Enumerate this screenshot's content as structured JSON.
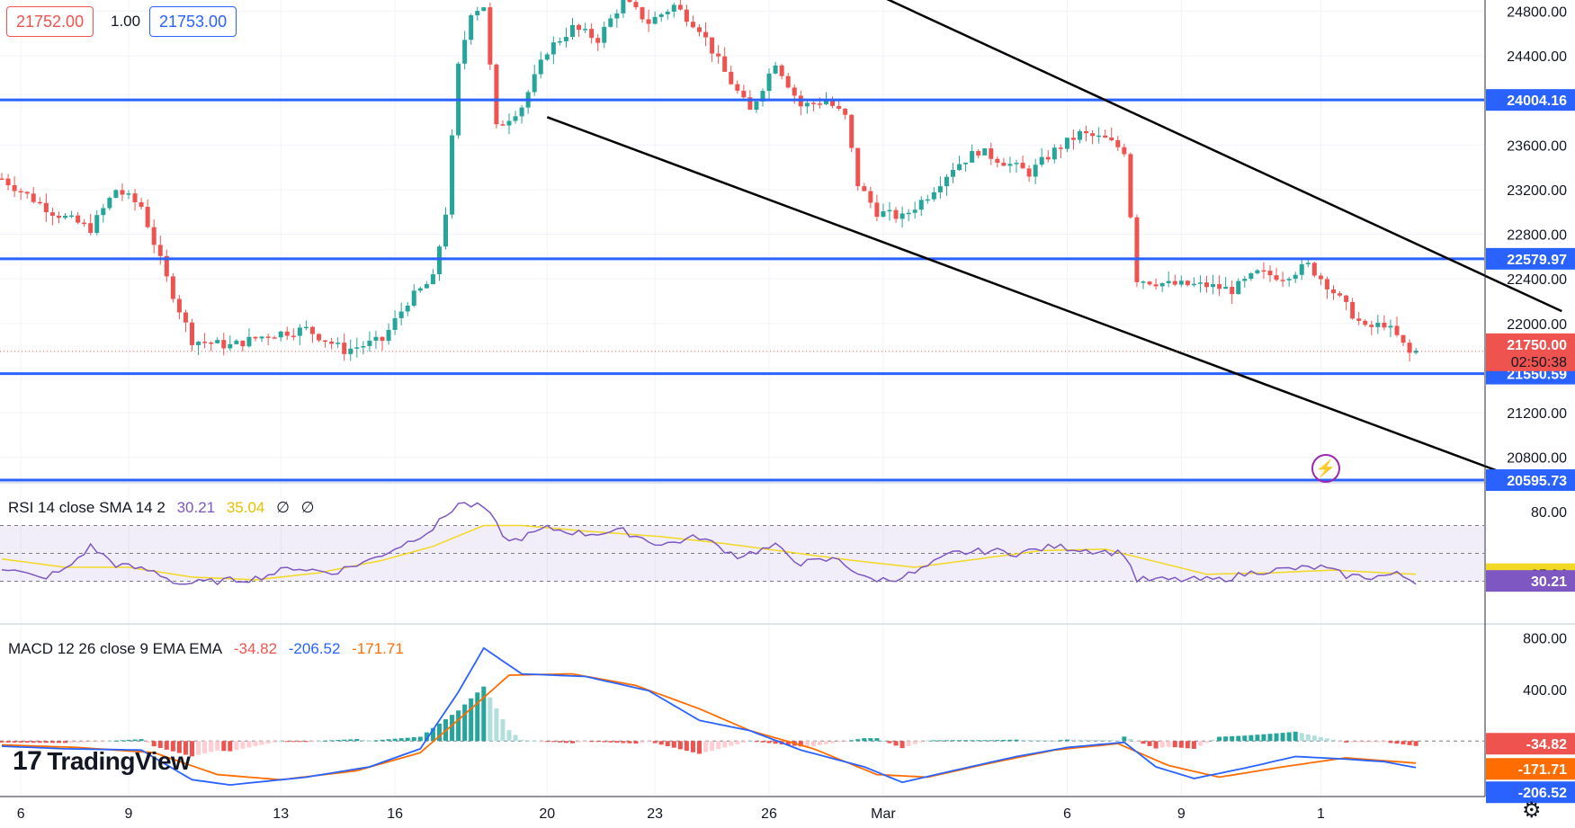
{
  "order_panel": {
    "sell_price": "21752.00",
    "quantity": "1.00",
    "buy_price": "21753.00"
  },
  "rsi_legend": {
    "label": "RSI 14 close SMA 14 2",
    "rsi_value": "30.21",
    "sma_value": "35.04",
    "extra1": "∅",
    "extra2": "∅"
  },
  "macd_legend": {
    "label": "MACD 12 26 close 9 EMA EMA",
    "hist_value": "-34.82",
    "macd_value": "-206.52",
    "signal_value": "-171.71"
  },
  "logo_text": "TradingView",
  "colors": {
    "up": "#26a69a",
    "down": "#ef5350",
    "level_line": "#2962ff",
    "trend_line": "#000000",
    "rsi": "#7e57c2",
    "rsi_sma": "#f2d824",
    "macd": "#2962ff",
    "signal": "#ff6d00",
    "last_price": "#ef5350"
  },
  "chart_data": {
    "type": "candlestick",
    "x_ticks": [
      "6",
      "9",
      "13",
      "16",
      "20",
      "23",
      "26",
      "Mar",
      "6",
      "9",
      "1"
    ],
    "price_axis": {
      "ylim": [
        20580,
        24900
      ],
      "ticks": [
        "24800.00",
        "24400.00",
        "23600.00",
        "23200.00",
        "22800.00",
        "22400.00",
        "22000.00",
        "21200.00",
        "20800.00"
      ],
      "levels": [
        {
          "value": 24004.16,
          "label": "24004.16"
        },
        {
          "value": 22579.97,
          "label": "22579.97"
        },
        {
          "value": 21550.59,
          "label": "21550.59"
        },
        {
          "value": 20595.73,
          "label": "20595.73"
        }
      ],
      "last_price": {
        "value": 21750.0,
        "label": "21750.00",
        "countdown": "02:50:38"
      }
    },
    "trend_lines": [
      {
        "from": {
          "bar": 138,
          "price": 24950
        },
        "to": {
          "bar": 246,
          "price": 22110
        }
      },
      {
        "from": {
          "bar": 86,
          "price": 23850
        },
        "to": {
          "bar": 241,
          "price": 20570
        }
      }
    ],
    "price_key": [
      {
        "bar": 0,
        "price": 23300
      },
      {
        "bar": 8,
        "price": 23000
      },
      {
        "bar": 14,
        "price": 22850
      },
      {
        "bar": 18,
        "price": 23200
      },
      {
        "bar": 22,
        "price": 23050
      },
      {
        "bar": 26,
        "price": 22400
      },
      {
        "bar": 30,
        "price": 21850
      },
      {
        "bar": 36,
        "price": 21800
      },
      {
        "bar": 42,
        "price": 21900
      },
      {
        "bar": 48,
        "price": 21950
      },
      {
        "bar": 54,
        "price": 21760
      },
      {
        "bar": 60,
        "price": 21850
      },
      {
        "bar": 64,
        "price": 22200
      },
      {
        "bar": 68,
        "price": 22400
      },
      {
        "bar": 70,
        "price": 23000
      },
      {
        "bar": 72,
        "price": 24300
      },
      {
        "bar": 74,
        "price": 24800
      },
      {
        "bar": 76,
        "price": 24850
      },
      {
        "bar": 78,
        "price": 23750
      },
      {
        "bar": 82,
        "price": 23950
      },
      {
        "bar": 86,
        "price": 24450
      },
      {
        "bar": 90,
        "price": 24650
      },
      {
        "bar": 94,
        "price": 24550
      },
      {
        "bar": 98,
        "price": 24900
      },
      {
        "bar": 102,
        "price": 24700
      },
      {
        "bar": 106,
        "price": 24850
      },
      {
        "bar": 110,
        "price": 24650
      },
      {
        "bar": 114,
        "price": 24250
      },
      {
        "bar": 118,
        "price": 23900
      },
      {
        "bar": 122,
        "price": 24350
      },
      {
        "bar": 126,
        "price": 23950
      },
      {
        "bar": 130,
        "price": 24000
      },
      {
        "bar": 133,
        "price": 23850
      },
      {
        "bar": 135,
        "price": 23250
      },
      {
        "bar": 138,
        "price": 23000
      },
      {
        "bar": 142,
        "price": 22950
      },
      {
        "bar": 146,
        "price": 23150
      },
      {
        "bar": 150,
        "price": 23400
      },
      {
        "bar": 154,
        "price": 23550
      },
      {
        "bar": 158,
        "price": 23450
      },
      {
        "bar": 162,
        "price": 23350
      },
      {
        "bar": 166,
        "price": 23550
      },
      {
        "bar": 170,
        "price": 23700
      },
      {
        "bar": 174,
        "price": 23650
      },
      {
        "bar": 177,
        "price": 23550
      },
      {
        "bar": 179,
        "price": 22400
      },
      {
        "bar": 184,
        "price": 22350
      },
      {
        "bar": 190,
        "price": 22340
      },
      {
        "bar": 194,
        "price": 22300
      },
      {
        "bar": 198,
        "price": 22450
      },
      {
        "bar": 202,
        "price": 22420
      },
      {
        "bar": 206,
        "price": 22520
      },
      {
        "bar": 209,
        "price": 22350
      },
      {
        "bar": 212,
        "price": 22150
      },
      {
        "bar": 215,
        "price": 21950
      },
      {
        "bar": 218,
        "price": 22000
      },
      {
        "bar": 220,
        "price": 21880
      },
      {
        "bar": 222,
        "price": 21730
      },
      {
        "bar": 223,
        "price": 21750
      }
    ],
    "rsi": {
      "ylim": [
        0,
        100
      ],
      "ticks": [
        "80.00"
      ],
      "band": [
        30,
        70
      ],
      "middle": 50,
      "current": {
        "rsi": 30.21,
        "sma": 35.04,
        "rsi_label": "30.21",
        "sma_label": "35.04"
      },
      "rsi_key": [
        {
          "bar": 0,
          "value": 40
        },
        {
          "bar": 6,
          "value": 32
        },
        {
          "bar": 10,
          "value": 38
        },
        {
          "bar": 14,
          "value": 55
        },
        {
          "bar": 18,
          "value": 42
        },
        {
          "bar": 24,
          "value": 37
        },
        {
          "bar": 28,
          "value": 28
        },
        {
          "bar": 34,
          "value": 30
        },
        {
          "bar": 40,
          "value": 32
        },
        {
          "bar": 46,
          "value": 40
        },
        {
          "bar": 52,
          "value": 36
        },
        {
          "bar": 58,
          "value": 45
        },
        {
          "bar": 64,
          "value": 58
        },
        {
          "bar": 68,
          "value": 68
        },
        {
          "bar": 72,
          "value": 86
        },
        {
          "bar": 76,
          "value": 83
        },
        {
          "bar": 80,
          "value": 58
        },
        {
          "bar": 86,
          "value": 68
        },
        {
          "bar": 92,
          "value": 64
        },
        {
          "bar": 98,
          "value": 66
        },
        {
          "bar": 104,
          "value": 56
        },
        {
          "bar": 110,
          "value": 62
        },
        {
          "bar": 116,
          "value": 48
        },
        {
          "bar": 122,
          "value": 55
        },
        {
          "bar": 126,
          "value": 43
        },
        {
          "bar": 132,
          "value": 46
        },
        {
          "bar": 136,
          "value": 32
        },
        {
          "bar": 140,
          "value": 31
        },
        {
          "bar": 144,
          "value": 36
        },
        {
          "bar": 150,
          "value": 50
        },
        {
          "bar": 156,
          "value": 52
        },
        {
          "bar": 160,
          "value": 50
        },
        {
          "bar": 166,
          "value": 55
        },
        {
          "bar": 172,
          "value": 52
        },
        {
          "bar": 177,
          "value": 50
        },
        {
          "bar": 179,
          "value": 31
        },
        {
          "bar": 186,
          "value": 31
        },
        {
          "bar": 192,
          "value": 31
        },
        {
          "bar": 198,
          "value": 37
        },
        {
          "bar": 204,
          "value": 39
        },
        {
          "bar": 208,
          "value": 40
        },
        {
          "bar": 212,
          "value": 34
        },
        {
          "bar": 216,
          "value": 33
        },
        {
          "bar": 220,
          "value": 35
        },
        {
          "bar": 223,
          "value": 30
        }
      ],
      "sma_key": [
        {
          "bar": 0,
          "value": 46
        },
        {
          "bar": 10,
          "value": 40
        },
        {
          "bar": 20,
          "value": 40
        },
        {
          "bar": 30,
          "value": 33
        },
        {
          "bar": 40,
          "value": 31
        },
        {
          "bar": 50,
          "value": 36
        },
        {
          "bar": 60,
          "value": 45
        },
        {
          "bar": 68,
          "value": 55
        },
        {
          "bar": 76,
          "value": 70
        },
        {
          "bar": 82,
          "value": 70
        },
        {
          "bar": 92,
          "value": 66
        },
        {
          "bar": 104,
          "value": 62
        },
        {
          "bar": 114,
          "value": 57
        },
        {
          "bar": 124,
          "value": 51
        },
        {
          "bar": 134,
          "value": 45
        },
        {
          "bar": 144,
          "value": 40
        },
        {
          "bar": 154,
          "value": 46
        },
        {
          "bar": 164,
          "value": 52
        },
        {
          "bar": 174,
          "value": 53
        },
        {
          "bar": 182,
          "value": 44
        },
        {
          "bar": 190,
          "value": 35
        },
        {
          "bar": 200,
          "value": 36
        },
        {
          "bar": 210,
          "value": 38
        },
        {
          "bar": 218,
          "value": 36
        },
        {
          "bar": 223,
          "value": 35
        }
      ]
    },
    "macd": {
      "ylim": [
        -430,
        900
      ],
      "ticks": [
        "800.00",
        "400.00"
      ],
      "current": {
        "hist_label": "-34.82",
        "signal_label": "-171.71",
        "macd_label": "-206.52"
      },
      "macd_key": [
        {
          "bar": 0,
          "value": -40
        },
        {
          "bar": 10,
          "value": -60
        },
        {
          "bar": 22,
          "value": -70
        },
        {
          "bar": 30,
          "value": -300
        },
        {
          "bar": 36,
          "value": -340
        },
        {
          "bar": 48,
          "value": -280
        },
        {
          "bar": 58,
          "value": -200
        },
        {
          "bar": 66,
          "value": -60
        },
        {
          "bar": 72,
          "value": 380
        },
        {
          "bar": 76,
          "value": 720
        },
        {
          "bar": 82,
          "value": 520
        },
        {
          "bar": 92,
          "value": 500
        },
        {
          "bar": 102,
          "value": 390
        },
        {
          "bar": 110,
          "value": 160
        },
        {
          "bar": 118,
          "value": 80
        },
        {
          "bar": 126,
          "value": -70
        },
        {
          "bar": 136,
          "value": -200
        },
        {
          "bar": 142,
          "value": -320
        },
        {
          "bar": 150,
          "value": -230
        },
        {
          "bar": 160,
          "value": -120
        },
        {
          "bar": 168,
          "value": -50
        },
        {
          "bar": 177,
          "value": -10
        },
        {
          "bar": 182,
          "value": -200
        },
        {
          "bar": 188,
          "value": -290
        },
        {
          "bar": 196,
          "value": -210
        },
        {
          "bar": 204,
          "value": -120
        },
        {
          "bar": 212,
          "value": -140
        },
        {
          "bar": 218,
          "value": -160
        },
        {
          "bar": 223,
          "value": -206
        }
      ],
      "signal_key": [
        {
          "bar": 0,
          "value": -30
        },
        {
          "bar": 12,
          "value": -50
        },
        {
          "bar": 24,
          "value": -90
        },
        {
          "bar": 34,
          "value": -260
        },
        {
          "bar": 44,
          "value": -300
        },
        {
          "bar": 56,
          "value": -230
        },
        {
          "bar": 66,
          "value": -90
        },
        {
          "bar": 74,
          "value": 250
        },
        {
          "bar": 80,
          "value": 510
        },
        {
          "bar": 90,
          "value": 520
        },
        {
          "bar": 100,
          "value": 430
        },
        {
          "bar": 110,
          "value": 250
        },
        {
          "bar": 118,
          "value": 80
        },
        {
          "bar": 128,
          "value": -60
        },
        {
          "bar": 138,
          "value": -260
        },
        {
          "bar": 146,
          "value": -280
        },
        {
          "bar": 156,
          "value": -170
        },
        {
          "bar": 166,
          "value": -70
        },
        {
          "bar": 176,
          "value": -20
        },
        {
          "bar": 184,
          "value": -190
        },
        {
          "bar": 192,
          "value": -280
        },
        {
          "bar": 202,
          "value": -200
        },
        {
          "bar": 212,
          "value": -130
        },
        {
          "bar": 223,
          "value": -171
        }
      ]
    }
  }
}
